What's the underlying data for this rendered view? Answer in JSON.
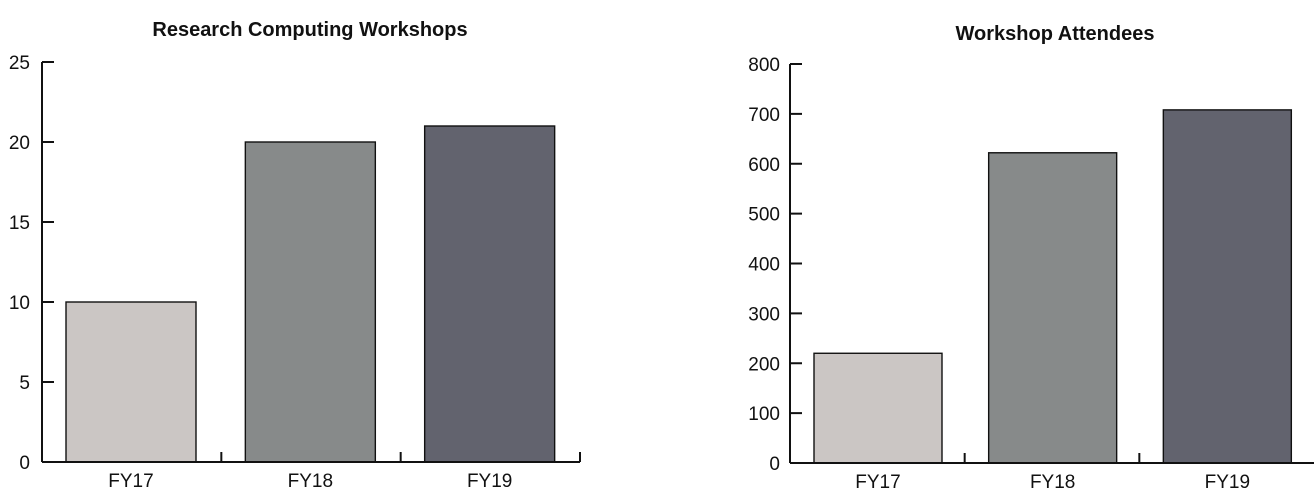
{
  "chart_data": [
    {
      "type": "bar",
      "title": "Research Computing Workshops",
      "categories": [
        "FY17",
        "FY18",
        "FY19"
      ],
      "values": [
        10,
        20,
        21
      ],
      "ylim": [
        0,
        25
      ],
      "yticks": [
        0,
        5,
        10,
        15,
        20,
        25
      ],
      "colors": [
        "#cbc6c4",
        "#878a8a",
        "#62636e"
      ],
      "grid": false,
      "legend": "none"
    },
    {
      "type": "bar",
      "title": "Workshop Attendees",
      "categories": [
        "FY17",
        "FY18",
        "FY19"
      ],
      "values": [
        220,
        622,
        708
      ],
      "ylim": [
        0,
        800
      ],
      "yticks": [
        0,
        100,
        200,
        300,
        400,
        500,
        600,
        700,
        800
      ],
      "colors": [
        "#cbc6c4",
        "#878a8a",
        "#62636e"
      ],
      "grid": false,
      "legend": "none"
    }
  ]
}
